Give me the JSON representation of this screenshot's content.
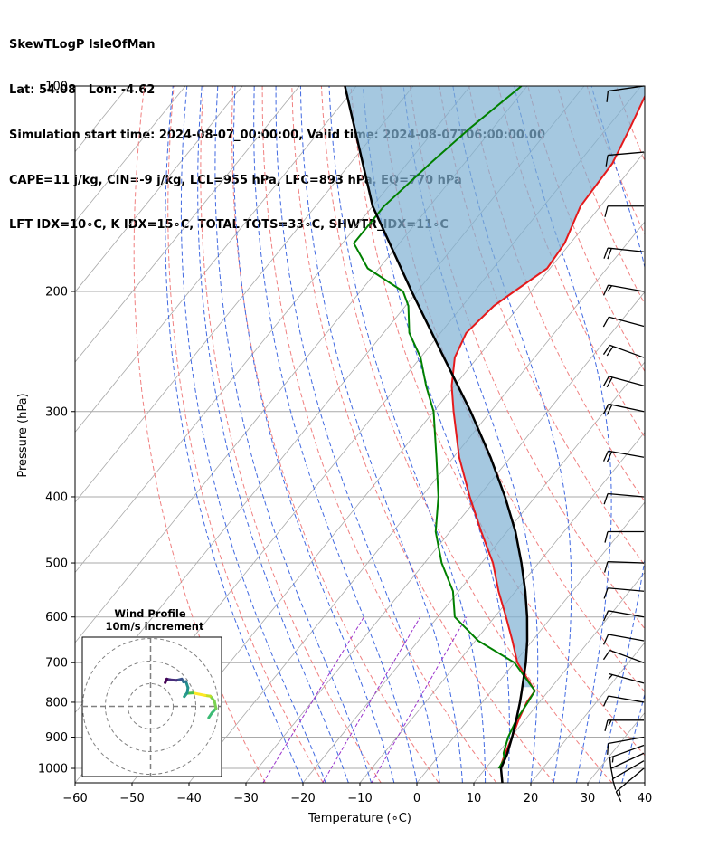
{
  "header": {
    "line1": "SkewTLogP IsleOfMan",
    "line2": "Lat: 54.08   Lon: -4.62",
    "line3": "Simulation start time: 2024-08-07_00:00:00, Valid time: 2024-08-07T06:00:00.00",
    "line4": "CAPE=11 j/kg, CIN=-9 j/kg, LCL=955 hPa, LFC=893 hPa, EQ=770 hPa",
    "line5": "LFT IDX=10∘C, K IDX=15∘C, TOTAL TOTS=33∘C, SHWTR_IDX=11∘C"
  },
  "colors": {
    "temperature": "#e41a1c",
    "dewpoint": "#008000",
    "parcel": "#000000",
    "cape_fill": "#7fb0d3",
    "dry_adiabat": "#f08080",
    "moist_adiabat": "#4169e1",
    "mixing_ratio": "#9932cc",
    "isotherm": "#a9a9a9"
  },
  "chart_data": [
    {
      "type": "line",
      "title": "",
      "xlabel": "Temperature (∘C)",
      "ylabel": "Pressure (hPa)",
      "xlim": [
        -60,
        40
      ],
      "ylim": [
        1050,
        100
      ],
      "y_scale": "log",
      "skew": true,
      "grid": true,
      "x_ticks": [
        -60,
        -50,
        -40,
        -30,
        -20,
        -10,
        0,
        10,
        20,
        30,
        40
      ],
      "y_ticks": [
        1000,
        900,
        800,
        700,
        600,
        500,
        400,
        300,
        200,
        100
      ],
      "series": [
        {
          "name": "Temperature",
          "pressure": [
            1000,
            950,
            900,
            850,
            800,
            770,
            700,
            650,
            600,
            550,
            500,
            450,
            400,
            350,
            300,
            275,
            250,
            230,
            210,
            200,
            185,
            170,
            150,
            130,
            115,
            100
          ],
          "values": [
            12.5,
            11.3,
            10.2,
            8.9,
            7.8,
            7.6,
            0.5,
            -3.5,
            -8.0,
            -13.0,
            -18.0,
            -24.5,
            -31.5,
            -39.0,
            -46.5,
            -50.5,
            -54.0,
            -55.5,
            -54.5,
            -53.0,
            -50.5,
            -51.0,
            -53.5,
            -54.0,
            -56.0,
            -58.5
          ]
        },
        {
          "name": "Dewpoint",
          "pressure": [
            1000,
            970,
            950,
            900,
            850,
            800,
            770,
            700,
            650,
            600,
            550,
            500,
            450,
            400,
            350,
            300,
            275,
            250,
            230,
            210,
            200,
            185,
            170,
            150,
            130,
            115,
            100
          ],
          "values": [
            12.3,
            12.0,
            11.0,
            9.5,
            8.5,
            8.0,
            7.6,
            0.0,
            -9.5,
            -17.0,
            -21.0,
            -27.0,
            -32.5,
            -37.0,
            -43.0,
            -50.0,
            -55.0,
            -60.0,
            -65.5,
            -69.5,
            -72.5,
            -82.0,
            -88.0,
            -88.0,
            -86.0,
            -84.0,
            -81.0
          ]
        },
        {
          "name": "Parcel",
          "pressure": [
            1050,
            1000,
            955,
            900,
            850,
            800,
            770,
            700,
            650,
            600,
            550,
            500,
            450,
            400,
            350,
            300,
            250,
            200,
            150,
            100
          ],
          "values": [
            15.0,
            12.7,
            11.8,
            10.2,
            8.5,
            6.6,
            5.3,
            2.0,
            -0.9,
            -4.3,
            -8.3,
            -13.0,
            -18.5,
            -25.3,
            -33.5,
            -43.5,
            -55.9,
            -71.0,
            -90.0,
            -112.0
          ]
        }
      ],
      "cape_region": "between parcel and temperature, 100-700 hPa"
    },
    {
      "type": "line",
      "title": "Wind Profile",
      "subtitle": "10m/s increment",
      "series": [
        {
          "name": "hodograph",
          "u": [
            5.4,
            6.2,
            7.2,
            6.8,
            5.8,
            4.5,
            3.0,
            1.5,
            0.0,
            -0.6,
            0.1,
            0.3,
            -0.2,
            -0.8,
            -1.2,
            -2.5,
            -4.0,
            -4.9,
            -5.3
          ],
          "v": [
            -2.8,
            -1.6,
            -0.5,
            1.3,
            2.5,
            2.7,
            3.0,
            3.3,
            3.2,
            2.4,
            3.3,
            4.6,
            6.1,
            6.0,
            6.7,
            6.4,
            6.5,
            6.7,
            5.8
          ]
        }
      ],
      "rings": [
        10,
        20,
        30
      ]
    },
    {
      "type": "barbs",
      "pressure": [
        1000,
        975,
        950,
        925,
        900,
        850,
        800,
        750,
        700,
        650,
        600,
        550,
        500,
        450,
        400,
        350,
        300,
        275,
        250,
        225,
        200,
        175,
        150,
        125,
        100
      ],
      "speed_kt": [
        15,
        10,
        10,
        15,
        10,
        15,
        10,
        5,
        10,
        10,
        10,
        10,
        10,
        10,
        10,
        20,
        20,
        20,
        20,
        10,
        15,
        20,
        10,
        10,
        10
      ],
      "direction_deg": [
        230,
        240,
        245,
        250,
        260,
        270,
        280,
        285,
        290,
        280,
        280,
        275,
        272,
        270,
        275,
        280,
        282,
        285,
        290,
        285,
        280,
        276,
        270,
        265,
        262
      ]
    }
  ]
}
